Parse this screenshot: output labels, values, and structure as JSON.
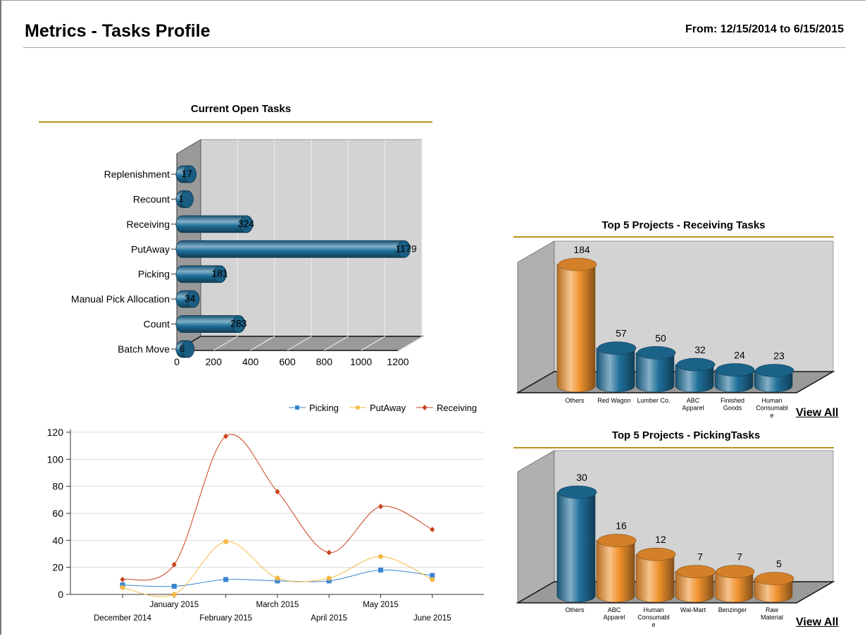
{
  "header": {
    "title": "Metrics - Tasks Profile",
    "date_range": "From: 12/15/2014 to 6/15/2015"
  },
  "open_tasks": {
    "title": "Current Open Tasks"
  },
  "receiving_projects": {
    "title": "Top 5 Projects - Receiving Tasks",
    "view_all": "View All"
  },
  "picking_projects": {
    "title": "Top 5 Projects - PickingTasks",
    "view_all": "View All"
  },
  "colors": {
    "blue": "#1f6f9a",
    "orange": "#f0922e",
    "gold_rule": "#b8931a",
    "picking": "#3a85d0",
    "putaway": "#f5b942",
    "receiving": "#c8411c"
  },
  "chart_data": [
    {
      "type": "bar",
      "orientation": "horizontal",
      "title": "Current Open Tasks",
      "categories": [
        "Replenishment",
        "Recount",
        "Receiving",
        "PutAway",
        "Picking",
        "Manual Pick Allocation",
        "Count",
        "Batch Move"
      ],
      "values": [
        17,
        1,
        324,
        1179,
        181,
        34,
        283,
        6
      ],
      "x_ticks": [
        "0",
        "200",
        "400",
        "600",
        "800",
        "1000",
        "1200"
      ],
      "xlim": [
        0,
        1200
      ],
      "color": "#1f6f9a"
    },
    {
      "type": "line",
      "categories": [
        "December 2014",
        "January 2015",
        "February 2015",
        "March 2015",
        "April 2015",
        "May 2015",
        "June 2015"
      ],
      "series": [
        {
          "name": "Picking",
          "values": [
            7,
            6,
            11,
            10,
            10,
            18,
            14
          ],
          "color": "#3a85d0",
          "marker": "square"
        },
        {
          "name": "PutAway",
          "values": [
            5,
            0,
            39,
            12,
            12,
            28,
            11
          ],
          "color": "#f5b942",
          "marker": "circle"
        },
        {
          "name": "Receiving",
          "values": [
            11,
            22,
            117,
            76,
            31,
            65,
            48
          ],
          "color": "#c8411c",
          "marker": "diamond"
        }
      ],
      "ylim": [
        0,
        120
      ],
      "y_ticks": [
        "0",
        "20",
        "40",
        "60",
        "80",
        "100",
        "120"
      ],
      "legend": "top",
      "grid": true
    },
    {
      "type": "bar",
      "title": "Top 5 Projects - Receiving Tasks",
      "categories": [
        "Others",
        "Red Wagon",
        "Lumber Co.",
        "ABC Apparel",
        "Finished Goods",
        "Human Consumable"
      ],
      "category_lines": [
        [
          "Others"
        ],
        [
          "Red Wagon"
        ],
        [
          "Lumber Co."
        ],
        [
          "ABC",
          "Apparel"
        ],
        [
          "Finished",
          "Goods"
        ],
        [
          "Human",
          "Consumabl",
          "e"
        ]
      ],
      "values": [
        184,
        57,
        50,
        32,
        24,
        23
      ],
      "bar_colors": [
        "#f0922e",
        "#1f6f9a",
        "#1f6f9a",
        "#1f6f9a",
        "#1f6f9a",
        "#1f6f9a"
      ]
    },
    {
      "type": "bar",
      "title": "Top 5 Projects - PickingTasks",
      "categories": [
        "Others",
        "ABC Apparel",
        "Human Consumable",
        "Wal-Mart",
        "Benzinger",
        "Raw Material"
      ],
      "category_lines": [
        [
          "Others"
        ],
        [
          "ABC",
          "Apparel"
        ],
        [
          "Human",
          "Consumabl",
          "e"
        ],
        [
          "Wal-Mart"
        ],
        [
          "Benzinger"
        ],
        [
          "Raw",
          "Material"
        ]
      ],
      "values": [
        30,
        16,
        12,
        7,
        7,
        5
      ],
      "bar_colors": [
        "#1f6f9a",
        "#f0922e",
        "#f0922e",
        "#f0922e",
        "#f0922e",
        "#f0922e"
      ]
    }
  ]
}
